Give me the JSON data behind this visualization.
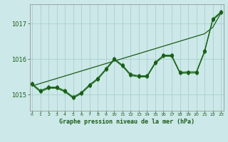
{
  "title": "Graphe pression niveau de la mer (hPa)",
  "bg_color": "#cce8e8",
  "grid_color": "#aad0d0",
  "line_color_dark": "#1a5c1a",
  "line_color_mid": "#2e7d2e",
  "x_ticks": [
    0,
    1,
    2,
    3,
    4,
    5,
    6,
    7,
    8,
    9,
    10,
    11,
    12,
    13,
    14,
    15,
    16,
    17,
    18,
    19,
    20,
    21,
    22,
    23
  ],
  "y_ticks": [
    1015,
    1016,
    1017
  ],
  "ylim": [
    1014.55,
    1017.55
  ],
  "xlim": [
    -0.3,
    23.3
  ],
  "trend_line": [
    1015.25,
    1015.32,
    1015.39,
    1015.46,
    1015.53,
    1015.6,
    1015.67,
    1015.74,
    1015.81,
    1015.88,
    1015.95,
    1016.02,
    1016.09,
    1016.16,
    1016.23,
    1016.3,
    1016.37,
    1016.44,
    1016.51,
    1016.58,
    1016.65,
    1016.72,
    1016.9,
    1017.3
  ],
  "jagged_line1": [
    1015.3,
    1015.1,
    1015.2,
    1015.2,
    1015.1,
    1014.92,
    1015.05,
    1015.27,
    1015.45,
    1015.72,
    1016.0,
    1015.82,
    1015.56,
    1015.52,
    1015.52,
    1015.9,
    1016.1,
    1016.1,
    1015.62,
    1015.63,
    1015.63,
    1016.22,
    1017.12,
    1017.32
  ],
  "jagged_line2": [
    1015.28,
    1015.08,
    1015.18,
    1015.18,
    1015.08,
    1014.9,
    1015.03,
    1015.25,
    1015.43,
    1015.7,
    1015.98,
    1015.8,
    1015.54,
    1015.5,
    1015.5,
    1015.88,
    1016.08,
    1016.08,
    1015.6,
    1015.61,
    1015.61,
    1016.2,
    1017.1,
    1017.3
  ],
  "jagged_line3": [
    1015.32,
    1015.12,
    1015.22,
    1015.22,
    1015.12,
    1014.94,
    1015.07,
    1015.29,
    1015.47,
    1015.74,
    1016.02,
    1015.84,
    1015.58,
    1015.54,
    1015.54,
    1015.92,
    1016.12,
    1016.12,
    1015.64,
    1015.65,
    1015.65,
    1016.24,
    1017.14,
    1017.34
  ]
}
